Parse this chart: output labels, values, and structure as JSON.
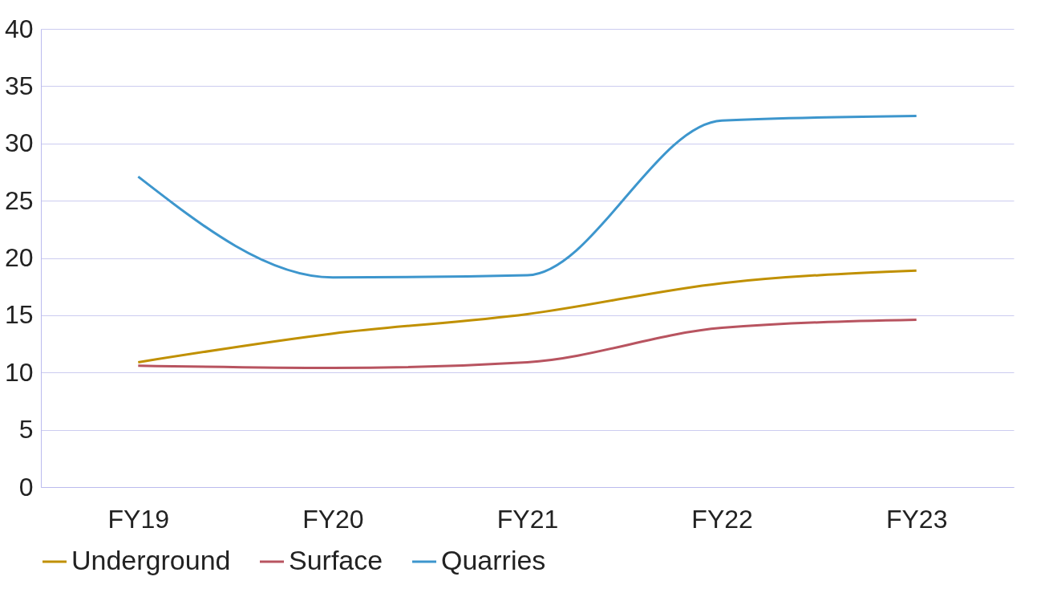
{
  "chart_data": {
    "type": "line",
    "categories": [
      "FY19",
      "FY20",
      "FY21",
      "FY22",
      "FY23"
    ],
    "series": [
      {
        "name": "Underground",
        "color": "#c09000",
        "values": [
          10.9,
          13.4,
          15.1,
          17.8,
          18.9
        ]
      },
      {
        "name": "Surface",
        "color": "#b85460",
        "values": [
          10.6,
          10.4,
          10.9,
          13.9,
          14.6
        ]
      },
      {
        "name": "Quarries",
        "color": "#3d96cd",
        "values": [
          27.1,
          18.3,
          18.5,
          32.0,
          32.4
        ]
      }
    ],
    "ylim": [
      0,
      40
    ],
    "yticks": [
      0,
      5,
      10,
      15,
      20,
      25,
      30,
      35,
      40
    ],
    "grid": "y",
    "legend": "bottom",
    "marker": "none",
    "line_style": "solid"
  }
}
